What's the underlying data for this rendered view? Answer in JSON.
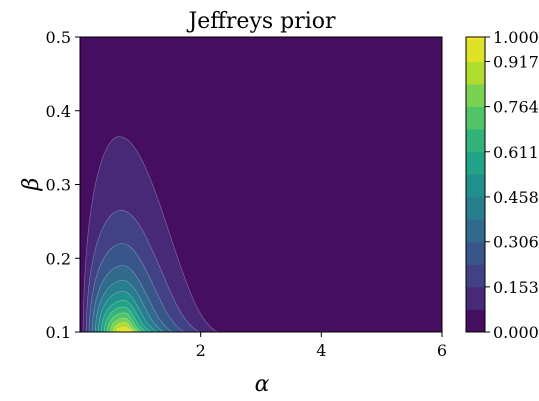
{
  "chart_data": {
    "type": "heatmap",
    "subtype": "filled-contour",
    "title": "Jeffreys prior",
    "xlabel": "α",
    "ylabel": "β",
    "xlim": [
      0.0,
      6.0
    ],
    "ylim": [
      0.1,
      0.5
    ],
    "x_ticks": [
      2,
      4,
      6
    ],
    "x_tick_labels": [
      "2",
      "4",
      "6"
    ],
    "y_ticks": [
      0.1,
      0.2,
      0.3,
      0.4,
      0.5
    ],
    "y_tick_labels": [
      "0.1",
      "0.2",
      "0.3",
      "0.4",
      "0.5"
    ],
    "colormap": "viridis",
    "colorbar": {
      "ticks": [
        0.0,
        0.153,
        0.306,
        0.458,
        0.611,
        0.764,
        0.917,
        1.0
      ],
      "tick_labels": [
        "0.000",
        "0.153",
        "0.306",
        "0.458",
        "0.611",
        "0.764",
        "0.917",
        "1.000"
      ],
      "levels": [
        0.0,
        0.0764,
        0.1528,
        0.2292,
        0.3056,
        0.382,
        0.4584,
        0.5348,
        0.6112,
        0.6876,
        0.764,
        0.8404,
        0.9168,
        0.9932,
        1.0
      ]
    },
    "peak": {
      "alpha": 0.75,
      "beta": 0.1,
      "value": 1.0
    },
    "contour_extent": [
      {
        "level": 0.0764,
        "alpha_range": [
          0.05,
          2.3
        ],
        "beta_max": 0.365,
        "alpha_at_beta_max": 0.65
      },
      {
        "level": 0.1528,
        "alpha_range": [
          0.1,
          2.0
        ],
        "beta_max": 0.265,
        "alpha_at_beta_max": 0.68
      },
      {
        "level": 0.2292,
        "alpha_range": [
          0.15,
          1.75
        ],
        "beta_max": 0.22,
        "alpha_at_beta_max": 0.7
      },
      {
        "level": 0.3056,
        "alpha_range": [
          0.2,
          1.55
        ],
        "beta_max": 0.19,
        "alpha_at_beta_max": 0.71
      },
      {
        "level": 0.382,
        "alpha_range": [
          0.25,
          1.4
        ],
        "beta_max": 0.17,
        "alpha_at_beta_max": 0.72
      },
      {
        "level": 0.4584,
        "alpha_range": [
          0.3,
          1.28
        ],
        "beta_max": 0.155,
        "alpha_at_beta_max": 0.72
      },
      {
        "level": 0.5348,
        "alpha_range": [
          0.35,
          1.18
        ],
        "beta_max": 0.143,
        "alpha_at_beta_max": 0.73
      },
      {
        "level": 0.6112,
        "alpha_range": [
          0.4,
          1.1
        ],
        "beta_max": 0.134,
        "alpha_at_beta_max": 0.73
      },
      {
        "level": 0.6876,
        "alpha_range": [
          0.45,
          1.03
        ],
        "beta_max": 0.126,
        "alpha_at_beta_max": 0.74
      },
      {
        "level": 0.764,
        "alpha_range": [
          0.5,
          0.97
        ],
        "beta_max": 0.119,
        "alpha_at_beta_max": 0.74
      },
      {
        "level": 0.8404,
        "alpha_range": [
          0.55,
          0.92
        ],
        "beta_max": 0.113,
        "alpha_at_beta_max": 0.74
      },
      {
        "level": 0.9168,
        "alpha_range": [
          0.6,
          0.88
        ],
        "beta_max": 0.107,
        "alpha_at_beta_max": 0.75
      },
      {
        "level": 0.9932,
        "alpha_range": [
          0.67,
          0.83
        ],
        "beta_max": 0.102,
        "alpha_at_beta_max": 0.75
      }
    ],
    "grid": false,
    "legend": "colorbar-right"
  }
}
